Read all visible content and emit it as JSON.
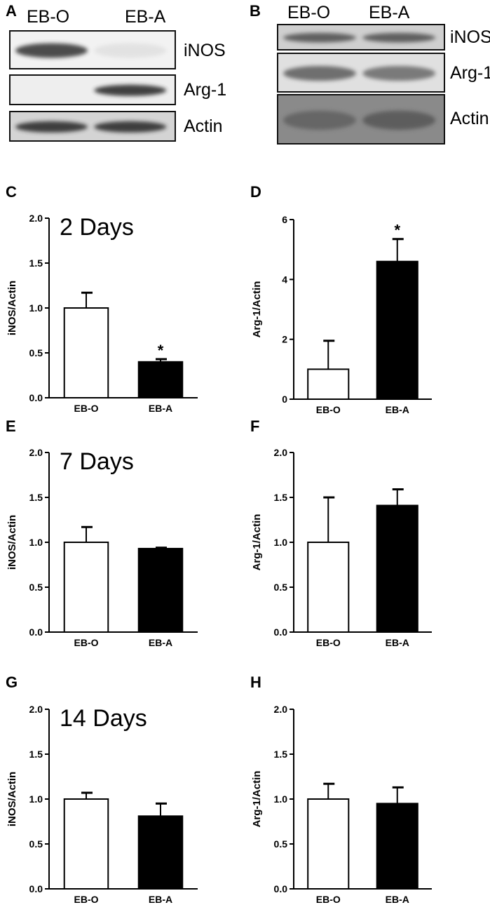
{
  "panel_letters": [
    "A",
    "B",
    "C",
    "D",
    "E",
    "F",
    "G",
    "H"
  ],
  "blots": [
    {
      "lanes": [
        "EB-O",
        "EB-A"
      ],
      "bands": [
        {
          "label": "iNOS",
          "signal": [
            0.9,
            0.05
          ],
          "bg": "#f2f2f2"
        },
        {
          "label": "Arg-1",
          "signal": [
            0.0,
            0.95
          ],
          "bg": "#eeeeee"
        },
        {
          "label": "Actin",
          "signal": [
            0.95,
            0.95
          ],
          "bg": "#d4d4d4"
        }
      ]
    },
    {
      "lanes": [
        "EB-O",
        "EB-A"
      ],
      "bands": [
        {
          "label": "iNOS",
          "signal": [
            0.8,
            0.8
          ],
          "bg": "#cfcfcf"
        },
        {
          "label": "Arg-1",
          "signal": [
            0.75,
            0.7
          ],
          "bg": "#e0e0e0"
        },
        {
          "label": "Actin",
          "signal": [
            0.7,
            0.75
          ],
          "bg": "#8a8a8a"
        }
      ]
    }
  ],
  "chart_data": [
    {
      "type": "bar",
      "title": "2 Days",
      "ylabel": "iNOS/Actin",
      "categories": [
        "EB-O",
        "EB-A"
      ],
      "values": [
        1.0,
        0.4
      ],
      "errors": [
        0.17,
        0.03
      ],
      "fills": [
        "#ffffff",
        "#000000"
      ],
      "significance": [
        "",
        "*"
      ],
      "ylim": [
        0,
        2.0
      ],
      "yticks": [
        "0.0",
        "0.5",
        "1.0",
        "1.5",
        "2.0"
      ]
    },
    {
      "type": "bar",
      "title": "",
      "ylabel": "Arg-1/Actin",
      "categories": [
        "EB-O",
        "EB-A"
      ],
      "values": [
        1.0,
        4.6
      ],
      "errors": [
        0.95,
        0.75
      ],
      "fills": [
        "#ffffff",
        "#000000"
      ],
      "significance": [
        "",
        "*"
      ],
      "ylim": [
        0,
        6
      ],
      "yticks": [
        "0",
        "2",
        "4",
        "6"
      ]
    },
    {
      "type": "bar",
      "title": "7 Days",
      "ylabel": "iNOS/Actin",
      "categories": [
        "EB-O",
        "EB-A"
      ],
      "values": [
        1.0,
        0.93
      ],
      "errors": [
        0.17,
        0.01
      ],
      "fills": [
        "#ffffff",
        "#000000"
      ],
      "significance": [
        "",
        ""
      ],
      "ylim": [
        0,
        2.0
      ],
      "yticks": [
        "0.0",
        "0.5",
        "1.0",
        "1.5",
        "2.0"
      ]
    },
    {
      "type": "bar",
      "title": "",
      "ylabel": "Arg-1/Actin",
      "categories": [
        "EB-O",
        "EB-A"
      ],
      "values": [
        1.0,
        1.41
      ],
      "errors": [
        0.5,
        0.18
      ],
      "fills": [
        "#ffffff",
        "#000000"
      ],
      "significance": [
        "",
        ""
      ],
      "ylim": [
        0,
        2.0
      ],
      "yticks": [
        "0.0",
        "0.5",
        "1.0",
        "1.5",
        "2.0"
      ]
    },
    {
      "type": "bar",
      "title": "14 Days",
      "ylabel": "iNOS/Actin",
      "categories": [
        "EB-O",
        "EB-A"
      ],
      "values": [
        1.0,
        0.81
      ],
      "errors": [
        0.07,
        0.14
      ],
      "fills": [
        "#ffffff",
        "#000000"
      ],
      "significance": [
        "",
        ""
      ],
      "ylim": [
        0,
        2.0
      ],
      "yticks": [
        "0.0",
        "0.5",
        "1.0",
        "1.5",
        "2.0"
      ]
    },
    {
      "type": "bar",
      "title": "",
      "ylabel": "Arg-1/Actin",
      "categories": [
        "EB-O",
        "EB-A"
      ],
      "values": [
        1.0,
        0.95
      ],
      "errors": [
        0.17,
        0.18
      ],
      "fills": [
        "#ffffff",
        "#000000"
      ],
      "significance": [
        "",
        ""
      ],
      "ylim": [
        0,
        2.0
      ],
      "yticks": [
        "0.0",
        "0.5",
        "1.0",
        "1.5",
        "2.0"
      ]
    }
  ]
}
